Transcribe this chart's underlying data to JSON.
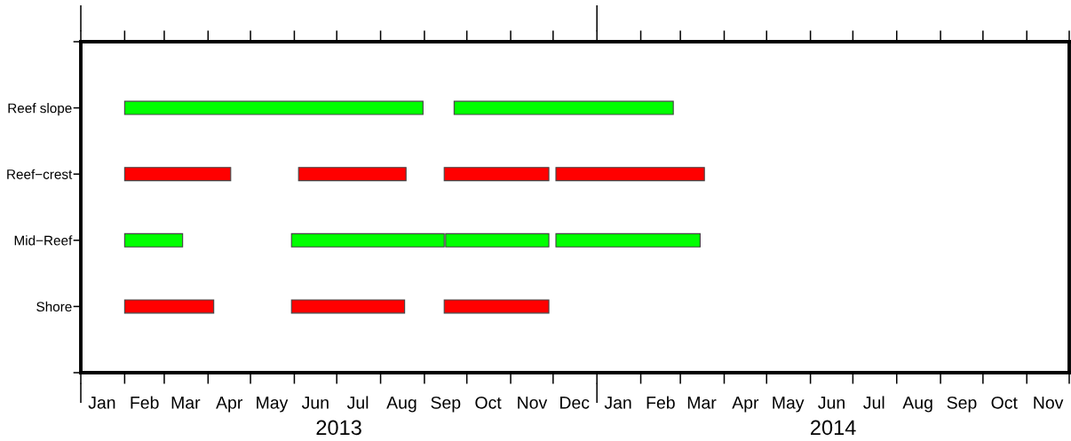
{
  "chart_data": {
    "type": "bar",
    "orientation": "horizontal",
    "categories": [
      "Reef slope",
      "Reef−crest",
      "Mid−Reef",
      "Shore"
    ],
    "series": [
      {
        "base": [
          15737,
          15737,
          15737,
          15737
        ],
        "values": [
          211,
          75,
          41,
          63
        ],
        "colors": [
          "#00ff00",
          "#ff0000",
          "#00ff00",
          "#ff0000"
        ]
      },
      {
        "base": [
          15970,
          15860,
          15855,
          15855
        ],
        "values": [
          155,
          76,
          108,
          80
        ],
        "colors": [
          "#00ff00",
          "#ff0000",
          "#00ff00",
          "#ff0000"
        ]
      },
      {
        "base": [
          null,
          15963,
          15964,
          15963
        ],
        "values": [
          null,
          74,
          73,
          74
        ],
        "colors": [
          "#00ff00",
          "#ff0000",
          "#00ff00",
          "#ff0000"
        ]
      },
      {
        "base": [
          null,
          16042,
          16042,
          null
        ],
        "values": [
          null,
          105,
          102,
          null
        ],
        "colors": [
          "#00ff00",
          "#ff0000",
          "#00ff00",
          "#ff0000"
        ]
      }
    ],
    "xlim": [
      "2013-01-01",
      "2014-12-01"
    ],
    "xticks": [
      {
        "value": "2013-01-01",
        "label": null
      },
      {
        "value": "2013-02-01",
        "label": null
      },
      {
        "value": "2013-03-01",
        "label": null
      },
      {
        "value": "2013-04-01",
        "label": null
      },
      {
        "value": "2013-05-01",
        "label": null
      },
      {
        "value": "2013-06-01",
        "label": null
      },
      {
        "value": "2013-07-01",
        "label": null
      },
      {
        "value": "2013-08-01",
        "label": null
      },
      {
        "value": "2013-09-01",
        "label": null
      },
      {
        "value": "2013-10-01",
        "label": null
      },
      {
        "value": "2013-11-01",
        "label": null
      },
      {
        "value": "2013-12-01",
        "label": null
      },
      {
        "value": "2014-01-01",
        "label": null
      },
      {
        "value": "2014-02-01",
        "label": null
      },
      {
        "value": "2014-03-01",
        "label": null
      },
      {
        "value": "2014-04-01",
        "label": null
      },
      {
        "value": "2014-05-01",
        "label": null
      },
      {
        "value": "2014-06-01",
        "label": null
      },
      {
        "value": "2014-07-01",
        "label": null
      },
      {
        "value": "2014-08-01",
        "label": null
      },
      {
        "value": "2014-09-01",
        "label": null
      },
      {
        "value": "2014-10-01",
        "label": null
      },
      {
        "value": "2014-11-01",
        "label": null
      },
      {
        "value": "2014-12-01",
        "label": null
      },
      {
        "value": "2013-01-16",
        "label": "Jan"
      },
      {
        "value": "2013-02-15",
        "label": "Feb"
      },
      {
        "value": "2013-03-16",
        "label": "Mar"
      },
      {
        "value": "2013-04-16",
        "label": "Apr"
      },
      {
        "value": "2013-05-16",
        "label": "May"
      },
      {
        "value": "2013-06-16",
        "label": "Jun"
      },
      {
        "value": "2013-07-16",
        "label": "Jul"
      },
      {
        "value": "2013-08-16",
        "label": "Aug"
      },
      {
        "value": "2013-09-16",
        "label": "Sep"
      },
      {
        "value": "2013-10-16",
        "label": "Oct"
      },
      {
        "value": "2013-11-16",
        "label": "Nov"
      },
      {
        "value": "2013-12-16",
        "label": "Dec"
      },
      {
        "value": "2014-01-16",
        "label": "Jan"
      },
      {
        "value": "2014-02-15",
        "label": "Feb"
      },
      {
        "value": "2014-03-16",
        "label": "Mar"
      },
      {
        "value": "2014-04-16",
        "label": "Apr"
      },
      {
        "value": "2014-05-16",
        "label": "May"
      },
      {
        "value": "2014-06-16",
        "label": "Jun"
      },
      {
        "value": "2014-07-16",
        "label": "Jul"
      },
      {
        "value": "2014-08-16",
        "label": "Aug"
      },
      {
        "value": "2014-09-16",
        "label": "Sep"
      },
      {
        "value": "2014-10-16",
        "label": "Oct"
      },
      {
        "value": "2014-11-16",
        "label": "Nov"
      }
    ],
    "annotations": [
      "2013",
      "2014"
    ]
  }
}
